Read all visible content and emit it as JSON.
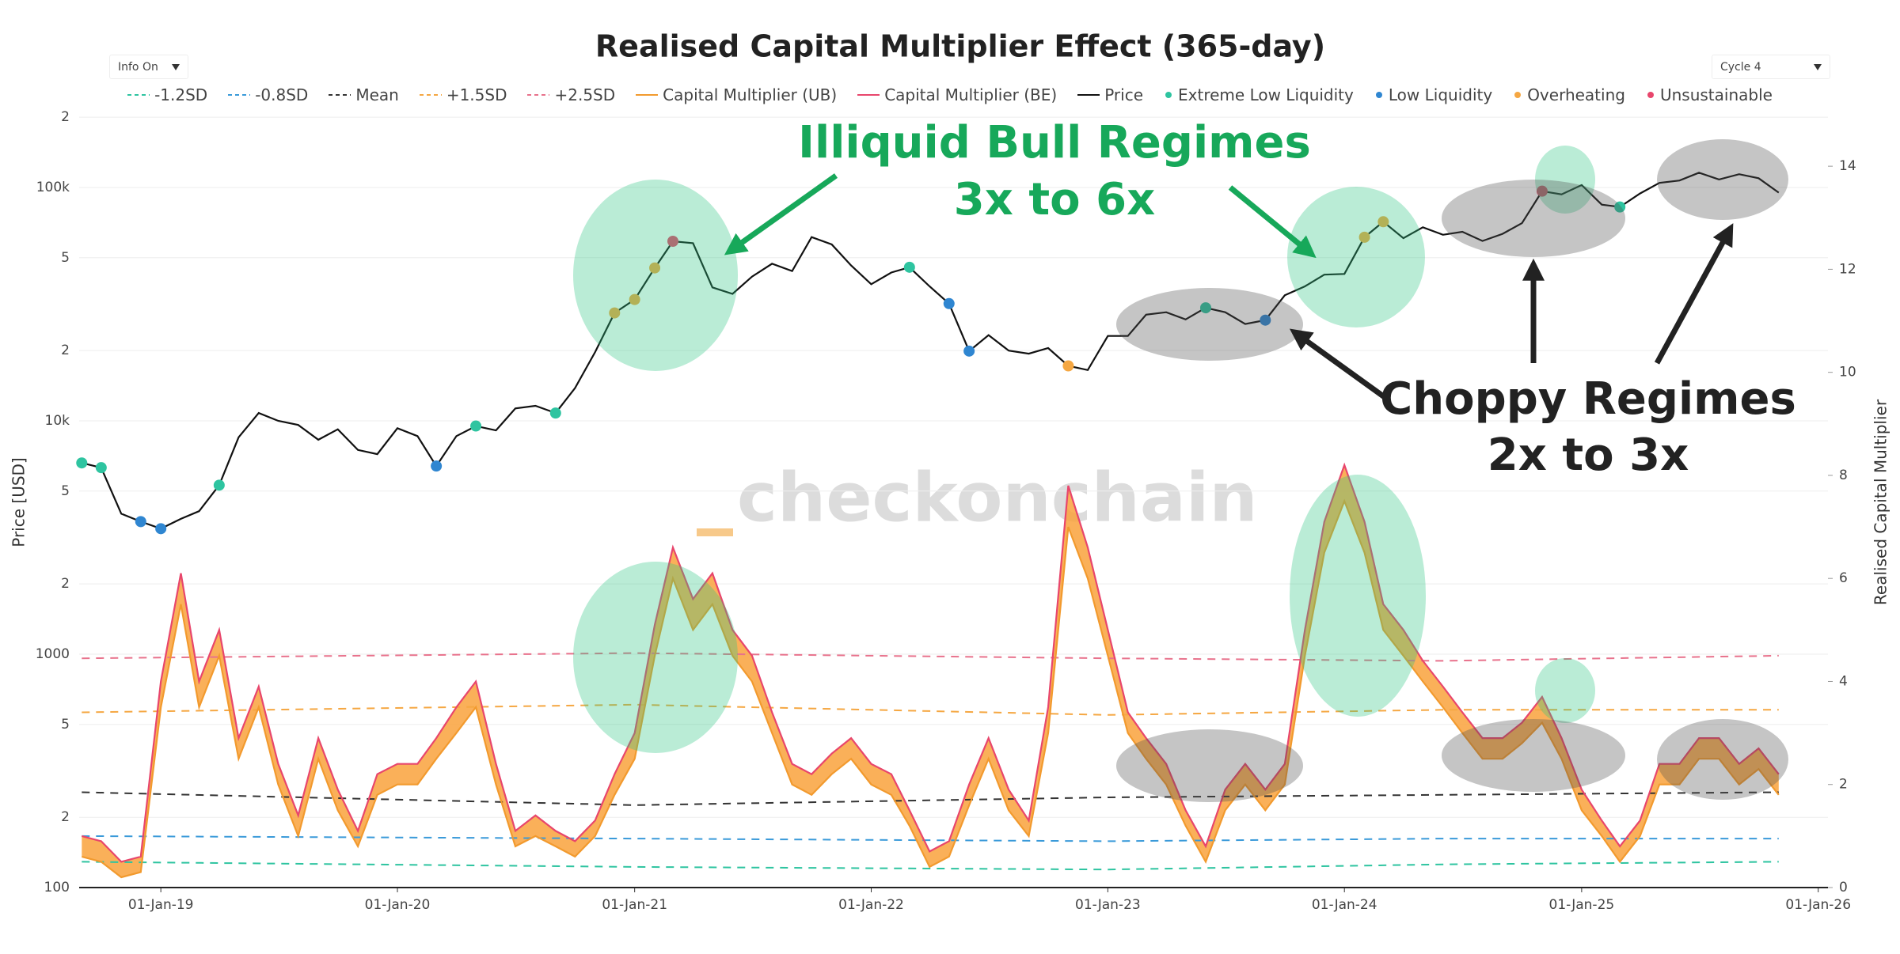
{
  "chart_data": {
    "type": "line",
    "title": "Realised Capital Multiplier Effect (365-day)",
    "controls": [
      "Info On",
      "Cycle 4"
    ],
    "ylabel": "Price [USD]",
    "y2label": "Realised Capital Multiplier",
    "watermark": "checkonchain",
    "annotations": [
      "Illiquid Bull Regimes",
      "3x to 6x",
      "Choppy Regimes",
      "2x to 3x"
    ],
    "ylog": true,
    "grid": true,
    "legend": "top",
    "xlim": [
      "2018-08-28",
      "2026-01-16"
    ],
    "xticks": [
      {
        "value": "2019-01-01",
        "label": "01-Jan-19"
      },
      {
        "value": "2020-01-01",
        "label": "01-Jan-20"
      },
      {
        "value": "2021-01-01",
        "label": "01-Jan-21"
      },
      {
        "value": "2022-01-01",
        "label": "01-Jan-22"
      },
      {
        "value": "2023-01-01",
        "label": "01-Jan-23"
      },
      {
        "value": "2024-01-01",
        "label": "01-Jan-24"
      },
      {
        "value": "2025-01-01",
        "label": "01-Jan-25"
      },
      {
        "value": "2026-01-01",
        "label": "01-Jan-26"
      }
    ],
    "ylim": [
      100,
      205000
    ],
    "yticks": [
      100,
      {
        "value": 200,
        "label": "2"
      },
      {
        "value": 500,
        "label": "5"
      },
      1000,
      {
        "value": 2000,
        "label": "2"
      },
      {
        "value": 5000,
        "label": "5"
      },
      {
        "value": 10000,
        "label": "10k"
      },
      {
        "value": 20000,
        "label": "2"
      },
      {
        "value": 50000,
        "label": "5"
      },
      {
        "value": 100000,
        "label": "100k"
      },
      {
        "value": 200000,
        "label": "2"
      }
    ],
    "y2lim": [
      0,
      15
    ],
    "y2ticks": [
      0,
      2,
      4,
      6,
      8,
      10,
      12,
      14
    ],
    "x": [
      "2018-09-01",
      "2018-10-01",
      "2018-11-01",
      "2018-12-01",
      "2019-01-01",
      "2019-02-01",
      "2019-03-01",
      "2019-04-01",
      "2019-05-01",
      "2019-06-01",
      "2019-07-01",
      "2019-08-01",
      "2019-09-01",
      "2019-10-01",
      "2019-11-01",
      "2019-12-01",
      "2020-01-01",
      "2020-02-01",
      "2020-03-01",
      "2020-04-01",
      "2020-05-01",
      "2020-06-01",
      "2020-07-01",
      "2020-08-01",
      "2020-09-01",
      "2020-10-01",
      "2020-11-01",
      "2020-12-01",
      "2021-01-01",
      "2021-02-01",
      "2021-03-01",
      "2021-04-01",
      "2021-05-01",
      "2021-06-01",
      "2021-07-01",
      "2021-08-01",
      "2021-09-01",
      "2021-10-01",
      "2021-11-01",
      "2021-12-01",
      "2022-01-01",
      "2022-02-01",
      "2022-03-01",
      "2022-04-01",
      "2022-05-01",
      "2022-06-01",
      "2022-07-01",
      "2022-08-01",
      "2022-09-01",
      "2022-10-01",
      "2022-11-01",
      "2022-12-01",
      "2023-01-01",
      "2023-02-01",
      "2023-03-01",
      "2023-04-01",
      "2023-05-01",
      "2023-06-01",
      "2023-07-01",
      "2023-08-01",
      "2023-09-01",
      "2023-10-01",
      "2023-11-01",
      "2023-12-01",
      "2024-01-01",
      "2024-02-01",
      "2024-03-01",
      "2024-04-01",
      "2024-05-01",
      "2024-06-01",
      "2024-07-01",
      "2024-08-01",
      "2024-09-01",
      "2024-10-01",
      "2024-11-01",
      "2024-12-01",
      "2025-01-01",
      "2025-02-01",
      "2025-03-01",
      "2025-04-01",
      "2025-05-01",
      "2025-06-01",
      "2025-07-01",
      "2025-08-01",
      "2025-09-01",
      "2025-10-01",
      "2025-11-01"
    ],
    "series": [
      {
        "name": "-1.2SD",
        "color": "#2ec4a0",
        "style": "dashed",
        "axis": "y2",
        "x": [
          "2018-09-01",
          "2021-01-01",
          "2023-01-01",
          "2024-06-01",
          "2025-11-01"
        ],
        "values": [
          0.5,
          0.4,
          0.35,
          0.45,
          0.5
        ]
      },
      {
        "name": "-0.8SD",
        "color": "#3a9ad9",
        "style": "dashed",
        "axis": "y2",
        "x": [
          "2018-09-01",
          "2021-01-01",
          "2023-01-01",
          "2024-06-01",
          "2025-11-01"
        ],
        "values": [
          1.0,
          0.95,
          0.9,
          0.95,
          0.95
        ]
      },
      {
        "name": "Mean",
        "color": "#333333",
        "style": "dashed",
        "axis": "y2",
        "x": [
          "2018-09-01",
          "2021-01-01",
          "2023-01-01",
          "2024-06-01",
          "2025-11-01"
        ],
        "values": [
          1.85,
          1.6,
          1.75,
          1.8,
          1.85
        ]
      },
      {
        "name": "+1.5SD",
        "color": "#f5a742",
        "style": "dashed",
        "axis": "y2",
        "x": [
          "2018-09-01",
          "2021-01-01",
          "2023-01-01",
          "2024-06-01",
          "2025-11-01"
        ],
        "values": [
          3.4,
          3.55,
          3.35,
          3.45,
          3.45
        ]
      },
      {
        "name": "+2.5SD",
        "color": "#e8728c",
        "style": "dashed",
        "axis": "y2",
        "x": [
          "2018-09-01",
          "2021-01-01",
          "2023-01-01",
          "2024-06-01",
          "2025-11-01"
        ],
        "values": [
          4.45,
          4.55,
          4.45,
          4.4,
          4.5
        ]
      },
      {
        "name": "Capital Multiplier (UB)",
        "color": "#f29a2e",
        "style": "line",
        "axis": "y2",
        "values": [
          0.6,
          0.5,
          0.2,
          0.3,
          3.5,
          5.5,
          3.5,
          4.5,
          2.5,
          3.5,
          2.0,
          1.0,
          2.5,
          1.5,
          0.8,
          1.8,
          2.0,
          2.0,
          2.5,
          3.0,
          3.5,
          2.0,
          0.8,
          1.0,
          0.8,
          0.6,
          1.0,
          1.8,
          2.5,
          4.5,
          6.0,
          5.0,
          5.5,
          4.5,
          4.0,
          3.0,
          2.0,
          1.8,
          2.2,
          2.5,
          2.0,
          1.8,
          1.2,
          0.4,
          0.6,
          1.6,
          2.5,
          1.5,
          1.0,
          3.0,
          7.0,
          6.0,
          4.5,
          3.0,
          2.5,
          2.0,
          1.2,
          0.5,
          1.5,
          2.0,
          1.5,
          2.0,
          4.5,
          6.5,
          7.5,
          6.5,
          5.0,
          4.5,
          4.0,
          3.5,
          3.0,
          2.5,
          2.5,
          2.8,
          3.2,
          2.5,
          1.5,
          1.0,
          0.5,
          1.0,
          2.0,
          2.0,
          2.5,
          2.5,
          2.0,
          2.3,
          1.8
        ]
      },
      {
        "name": "Capital Multiplier (BE)",
        "color": "#e8466c",
        "style": "line",
        "axis": "y2",
        "fill": "#f9a23c",
        "values": [
          1.0,
          0.9,
          0.5,
          0.6,
          4.0,
          6.1,
          4.0,
          5.0,
          2.9,
          3.9,
          2.4,
          1.4,
          2.9,
          1.9,
          1.1,
          2.2,
          2.4,
          2.4,
          2.9,
          3.5,
          4.0,
          2.4,
          1.1,
          1.4,
          1.1,
          0.9,
          1.3,
          2.2,
          3.0,
          5.1,
          6.6,
          5.6,
          6.1,
          5.0,
          4.5,
          3.4,
          2.4,
          2.2,
          2.6,
          2.9,
          2.4,
          2.2,
          1.5,
          0.7,
          0.9,
          2.0,
          2.9,
          1.9,
          1.3,
          3.5,
          7.8,
          6.6,
          5.0,
          3.4,
          2.9,
          2.4,
          1.5,
          0.8,
          1.9,
          2.4,
          1.9,
          2.4,
          5.0,
          7.1,
          8.2,
          7.1,
          5.5,
          5.0,
          4.4,
          3.9,
          3.4,
          2.9,
          2.9,
          3.2,
          3.7,
          2.9,
          1.9,
          1.3,
          0.8,
          1.3,
          2.4,
          2.4,
          2.9,
          2.9,
          2.4,
          2.7,
          2.2
        ]
      },
      {
        "name": "Price",
        "color": "#111111",
        "style": "line",
        "values": [
          6600,
          6300,
          4000,
          3700,
          3450,
          3800,
          4100,
          5300,
          8500,
          10800,
          10000,
          9600,
          8300,
          9200,
          7500,
          7200,
          9300,
          8600,
          6400,
          8600,
          9500,
          9100,
          11300,
          11600,
          10800,
          13800,
          19700,
          29000,
          33100,
          45200,
          58800,
          57700,
          37300,
          35000,
          41500,
          47100,
          43800,
          61300,
          57000,
          46300,
          38500,
          43200,
          45500,
          37700,
          31800,
          19900,
          23300,
          20000,
          19400,
          20500,
          17200,
          16500,
          23100,
          23100,
          28500,
          29200,
          27200,
          30500,
          29200,
          26000,
          27000,
          34500,
          37700,
          42300,
          42600,
          61200,
          71300,
          60600,
          67500,
          62700,
          64600,
          59000,
          63300,
          70300,
          96400,
          93400,
          102400,
          84400,
          82500,
          94200,
          104600,
          107100,
          115700,
          108200,
          114000,
          109500,
          95000
        ]
      },
      {
        "name": "Extreme Low Liquidity",
        "color": "#2ec4a0",
        "style": "dots",
        "x": [
          "2018-09-01",
          "2018-10-01",
          "2019-04-01",
          "2020-05-01",
          "2020-09-01",
          "2022-03-01",
          "2023-06-01",
          "2025-03-01"
        ],
        "values": [
          6600,
          6300,
          5300,
          9500,
          10800,
          45500,
          30500,
          82500
        ]
      },
      {
        "name": "Low Liquidity",
        "color": "#2f86d1",
        "style": "dots",
        "x": [
          "2018-12-01",
          "2019-01-01",
          "2020-03-01",
          "2022-05-01",
          "2022-06-01",
          "2023-09-01"
        ],
        "values": [
          3700,
          3450,
          6400,
          31800,
          19900,
          27000
        ]
      },
      {
        "name": "Overheating",
        "color": "#f5a742",
        "style": "dots",
        "x": [
          "2020-12-01",
          "2021-01-01",
          "2021-02-01",
          "2022-11-01",
          "2024-02-01",
          "2024-03-01"
        ],
        "values": [
          29000,
          33100,
          45200,
          17200,
          61200,
          71300
        ]
      },
      {
        "name": "Unsustainable",
        "color": "#e8466c",
        "style": "dots",
        "x": [
          "2021-03-01",
          "2024-11-01"
        ],
        "values": [
          58800,
          96400
        ]
      }
    ]
  }
}
